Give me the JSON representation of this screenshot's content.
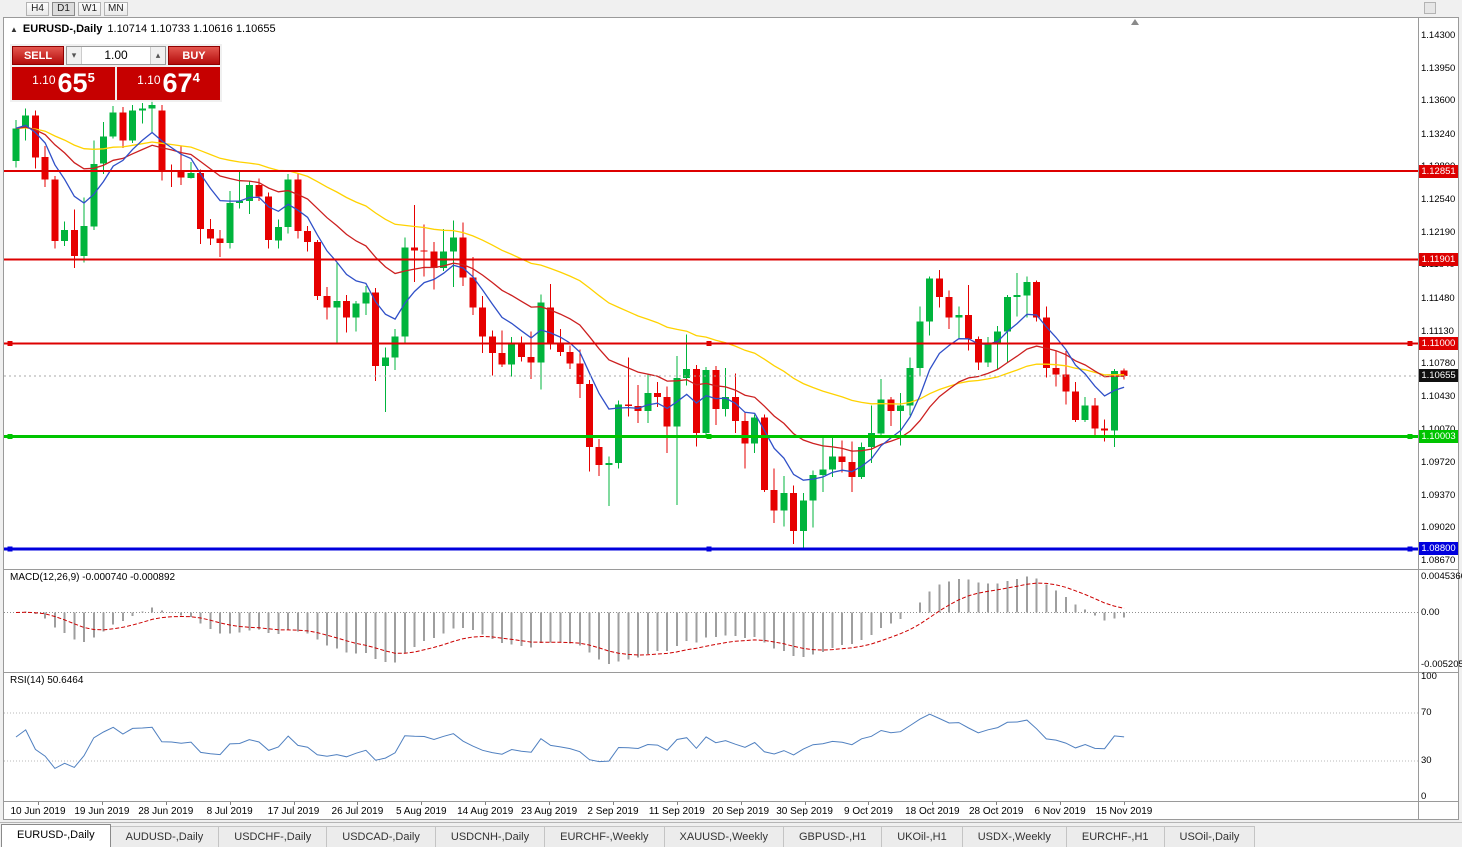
{
  "toolbar": {
    "timeframes": [
      "H4",
      "D1",
      "W1",
      "MN"
    ],
    "active_timeframe": "D1"
  },
  "icons": {
    "panel_toggle": "▲",
    "volume_step_down": "▾",
    "volume_step_up": "▴"
  },
  "chart_header": {
    "symbol_title": "EURUSD-,Daily",
    "ohlc": "1.10714 1.10733 1.10616 1.10655"
  },
  "trade_panel": {
    "sell_label": "SELL",
    "buy_label": "BUY",
    "volume": "1.00",
    "sell_price": {
      "prefix": "1.10",
      "big": "65",
      "sup": "5"
    },
    "buy_price": {
      "prefix": "1.10",
      "big": "67",
      "sup": "4"
    }
  },
  "price_axis_labels": [
    "1.14300",
    "1.13950",
    "1.13600",
    "1.13240",
    "1.12890",
    "1.12540",
    "1.12190",
    "1.11840",
    "1.11480",
    "1.11130",
    "1.10780",
    "1.10430",
    "1.10070",
    "1.09720",
    "1.09370",
    "1.09020",
    "1.08670"
  ],
  "current_price": "1.10655",
  "hlines": [
    {
      "value": 1.12851,
      "label": "1.12851",
      "color": "#dd0000",
      "width": 2,
      "handles": false
    },
    {
      "value": 1.11901,
      "label": "1.11901",
      "color": "#dd0000",
      "width": 2,
      "handles": false
    },
    {
      "value": 1.11,
      "label": "1.11000",
      "color": "#dd0000",
      "width": 2,
      "handles": true
    },
    {
      "value": 1.10003,
      "label": "1.10003",
      "color": "#00c400",
      "width": 3,
      "handles": true
    },
    {
      "value": 1.088,
      "label": "1.08800",
      "color": "#0000dd",
      "width": 3,
      "handles": true
    }
  ],
  "time_axis": [
    "10 Jun 2019",
    "19 Jun 2019",
    "28 Jun 2019",
    "8 Jul 2019",
    "17 Jul 2019",
    "26 Jul 2019",
    "5 Aug 2019",
    "14 Aug 2019",
    "23 Aug 2019",
    "2 Sep 2019",
    "11 Sep 2019",
    "20 Sep 2019",
    "30 Sep 2019",
    "9 Oct 2019",
    "18 Oct 2019",
    "28 Oct 2019",
    "6 Nov 2019",
    "15 Nov 2019"
  ],
  "indicators": {
    "macd": {
      "label": "MACD(12,26,9) -0.000740 -0.000892",
      "axis_top": "0.0045366",
      "axis_zero": "0.00",
      "axis_bottom": "-0.0052051"
    },
    "rsi": {
      "label": "RSI(14) 50.6464",
      "axis": [
        "100",
        "70",
        "30",
        "0"
      ],
      "levels": [
        70,
        30
      ]
    }
  },
  "tabs": [
    {
      "label": "EURUSD-,Daily",
      "active": true
    },
    {
      "label": "AUDUSD-,Daily",
      "active": false
    },
    {
      "label": "USDCHF-,Daily",
      "active": false
    },
    {
      "label": "USDCAD-,Daily",
      "active": false
    },
    {
      "label": "USDCNH-,Daily",
      "active": false
    },
    {
      "label": "EURCHF-,Weekly",
      "active": false
    },
    {
      "label": "XAUUSD-,Weekly",
      "active": false
    },
    {
      "label": "GBPUSD-,H1",
      "active": false
    },
    {
      "label": "UKOil-,H1",
      "active": false
    },
    {
      "label": "USDX-,Weekly",
      "active": false
    },
    {
      "label": "EURCHF-,H1",
      "active": false
    },
    {
      "label": "USOil-,Daily",
      "active": false
    }
  ],
  "colors": {
    "up_candle": "#00b43c",
    "down_candle": "#e60000",
    "ma_fast": "#3050c8",
    "ma_mid": "#cc2020",
    "ma_slow": "#ffd200",
    "macd_hist": "#9e9e9e",
    "macd_signal": "#cc0000",
    "rsi_line": "#5080c0"
  },
  "chart_data": {
    "type": "candlestick",
    "symbol": "EURUSD",
    "timeframe": "Daily",
    "date_range": [
      "10 Jun 2019",
      "15 Nov 2019"
    ],
    "price_range": [
      1.0867,
      1.143
    ],
    "ohlc_current": {
      "open": 1.10714,
      "high": 1.10733,
      "low": 1.10616,
      "close": 1.10655
    },
    "h_lines": [
      1.12851,
      1.11901,
      1.11,
      1.10003,
      1.088
    ],
    "moving_averages": [
      {
        "type": "ema",
        "period": 8,
        "color": "#3050c8"
      },
      {
        "type": "ema",
        "period": 20,
        "color": "#cc2020"
      },
      {
        "type": "ema",
        "period": 45,
        "color": "#ffd200"
      }
    ],
    "candles": [
      [
        1.1296,
        1.134,
        1.1289,
        1.1331
      ],
      [
        1.1331,
        1.1352,
        1.1318,
        1.1345
      ],
      [
        1.1345,
        1.135,
        1.1288,
        1.13
      ],
      [
        1.13,
        1.1312,
        1.1268,
        1.1276
      ],
      [
        1.1276,
        1.128,
        1.1202,
        1.121
      ],
      [
        1.121,
        1.1231,
        1.1205,
        1.1222
      ],
      [
        1.1222,
        1.1244,
        1.1181,
        1.1194
      ],
      [
        1.1194,
        1.1257,
        1.1187,
        1.1226
      ],
      [
        1.1226,
        1.1318,
        1.1222,
        1.1293
      ],
      [
        1.1293,
        1.1338,
        1.1282,
        1.1322
      ],
      [
        1.1322,
        1.1355,
        1.132,
        1.1348
      ],
      [
        1.1348,
        1.1354,
        1.131,
        1.1318
      ],
      [
        1.1318,
        1.1356,
        1.1315,
        1.135
      ],
      [
        1.135,
        1.1358,
        1.1336,
        1.1352
      ],
      [
        1.1352,
        1.1364,
        1.1326,
        1.1356
      ],
      [
        1.135,
        1.1356,
        1.1275,
        1.1286
      ],
      [
        1.1286,
        1.1292,
        1.1268,
        1.1285
      ],
      [
        1.1285,
        1.1312,
        1.127,
        1.1278
      ],
      [
        1.1278,
        1.1295,
        1.1277,
        1.1283
      ],
      [
        1.1283,
        1.1287,
        1.1207,
        1.1223
      ],
      [
        1.1223,
        1.1234,
        1.1206,
        1.1213
      ],
      [
        1.1213,
        1.1222,
        1.1193,
        1.1208
      ],
      [
        1.1208,
        1.1264,
        1.1202,
        1.1251
      ],
      [
        1.1251,
        1.1286,
        1.1245,
        1.1253
      ],
      [
        1.1253,
        1.1275,
        1.1239,
        1.127
      ],
      [
        1.127,
        1.1277,
        1.1253,
        1.1258
      ],
      [
        1.1258,
        1.1262,
        1.1202,
        1.1211
      ],
      [
        1.1211,
        1.1233,
        1.1202,
        1.1225
      ],
      [
        1.1225,
        1.1282,
        1.1218,
        1.1276
      ],
      [
        1.1276,
        1.1283,
        1.1213,
        1.1221
      ],
      [
        1.1221,
        1.1226,
        1.1199,
        1.1209
      ],
      [
        1.1209,
        1.1211,
        1.1147,
        1.1151
      ],
      [
        1.1151,
        1.1161,
        1.1126,
        1.1139
      ],
      [
        1.1139,
        1.1187,
        1.1101,
        1.1146
      ],
      [
        1.1146,
        1.1152,
        1.1112,
        1.1128
      ],
      [
        1.1128,
        1.1146,
        1.1113,
        1.1143
      ],
      [
        1.1143,
        1.1162,
        1.1131,
        1.1155
      ],
      [
        1.1155,
        1.116,
        1.106,
        1.1076
      ],
      [
        1.1076,
        1.1096,
        1.1027,
        1.1085
      ],
      [
        1.1085,
        1.1116,
        1.1072,
        1.1108
      ],
      [
        1.1108,
        1.1214,
        1.1101,
        1.1203
      ],
      [
        1.1203,
        1.1249,
        1.1166,
        1.12
      ],
      [
        1.12,
        1.1228,
        1.1172,
        1.1199
      ],
      [
        1.1199,
        1.1209,
        1.1158,
        1.1181
      ],
      [
        1.1181,
        1.1223,
        1.1178,
        1.1199
      ],
      [
        1.1199,
        1.1232,
        1.1161,
        1.1214
      ],
      [
        1.1214,
        1.123,
        1.1162,
        1.1171
      ],
      [
        1.1171,
        1.1193,
        1.1131,
        1.1139
      ],
      [
        1.1139,
        1.1151,
        1.109,
        1.1108
      ],
      [
        1.1108,
        1.1114,
        1.1066,
        1.109
      ],
      [
        1.109,
        1.1114,
        1.1075,
        1.1078
      ],
      [
        1.1078,
        1.1107,
        1.1065,
        1.1099
      ],
      [
        1.1099,
        1.1108,
        1.1081,
        1.1086
      ],
      [
        1.1086,
        1.1113,
        1.1062,
        1.108
      ],
      [
        1.108,
        1.1153,
        1.1051,
        1.1144
      ],
      [
        1.1139,
        1.1164,
        1.1094,
        1.1101
      ],
      [
        1.1101,
        1.1116,
        1.1087,
        1.1091
      ],
      [
        1.1091,
        1.1098,
        1.1073,
        1.1079
      ],
      [
        1.1079,
        1.1094,
        1.1042,
        1.1057
      ],
      [
        1.1057,
        1.1061,
        1.0963,
        1.0989
      ],
      [
        1.0989,
        1.0998,
        1.0958,
        1.097
      ],
      [
        1.097,
        1.0979,
        1.0926,
        1.0972
      ],
      [
        1.0972,
        1.1039,
        1.0966,
        1.1035
      ],
      [
        1.1035,
        1.1085,
        1.1022,
        1.1033
      ],
      [
        1.1033,
        1.1056,
        1.1015,
        1.1028
      ],
      [
        1.1028,
        1.1067,
        1.1015,
        1.1047
      ],
      [
        1.1047,
        1.1059,
        1.1032,
        1.1043
      ],
      [
        1.1043,
        1.1054,
        1.0983,
        1.1011
      ],
      [
        1.1011,
        1.1087,
        1.0927,
        1.1063
      ],
      [
        1.1063,
        1.111,
        1.1055,
        1.1073
      ],
      [
        1.1073,
        1.1077,
        1.099,
        1.1004
      ],
      [
        1.1004,
        1.1075,
        1.0999,
        1.1072
      ],
      [
        1.1072,
        1.1076,
        1.1013,
        1.103
      ],
      [
        1.103,
        1.1074,
        1.1022,
        1.1043
      ],
      [
        1.1043,
        1.1068,
        1.1004,
        1.1017
      ],
      [
        1.1017,
        1.1026,
        1.0966,
        1.0993
      ],
      [
        1.0993,
        1.1024,
        1.0983,
        1.1021
      ],
      [
        1.1021,
        1.1024,
        1.0941,
        1.0943
      ],
      [
        1.0943,
        1.0966,
        1.0908,
        1.0921
      ],
      [
        1.0921,
        1.0958,
        1.0904,
        1.094
      ],
      [
        1.094,
        1.0948,
        1.0885,
        1.0899
      ],
      [
        1.0899,
        1.094,
        1.0879,
        1.0932
      ],
      [
        1.0932,
        1.0964,
        1.0903,
        1.0959
      ],
      [
        1.0959,
        1.0999,
        1.0941,
        1.0965
      ],
      [
        1.0965,
        1.0999,
        1.0957,
        1.0979
      ],
      [
        1.0979,
        1.0996,
        1.0962,
        1.0973
      ],
      [
        1.0973,
        1.0995,
        1.0941,
        1.0957
      ],
      [
        1.0957,
        1.0994,
        1.0955,
        1.0989
      ],
      [
        1.0989,
        1.1034,
        1.0972,
        1.1004
      ],
      [
        1.1004,
        1.1062,
        1.1002,
        1.104
      ],
      [
        1.104,
        1.1043,
        1.1012,
        1.1028
      ],
      [
        1.1028,
        1.1047,
        1.0991,
        1.1034
      ],
      [
        1.1034,
        1.1085,
        1.1023,
        1.1074
      ],
      [
        1.1074,
        1.114,
        1.1065,
        1.1124
      ],
      [
        1.1124,
        1.1172,
        1.1109,
        1.117
      ],
      [
        1.117,
        1.1179,
        1.1139,
        1.115
      ],
      [
        1.115,
        1.1157,
        1.1116,
        1.1128
      ],
      [
        1.1128,
        1.114,
        1.1106,
        1.1131
      ],
      [
        1.1131,
        1.1163,
        1.1093,
        1.1105
      ],
      [
        1.1105,
        1.1108,
        1.1072,
        1.108
      ],
      [
        1.108,
        1.1107,
        1.1075,
        1.1099
      ],
      [
        1.1099,
        1.1119,
        1.1073,
        1.1113
      ],
      [
        1.1113,
        1.1152,
        1.108,
        1.115
      ],
      [
        1.115,
        1.1176,
        1.1129,
        1.1152
      ],
      [
        1.1152,
        1.1172,
        1.1128,
        1.1166
      ],
      [
        1.1166,
        1.1168,
        1.1124,
        1.1128
      ],
      [
        1.1128,
        1.114,
        1.1064,
        1.1074
      ],
      [
        1.1074,
        1.1093,
        1.1054,
        1.1067
      ],
      [
        1.1067,
        1.1092,
        1.1035,
        1.1049
      ],
      [
        1.1049,
        1.1059,
        1.1016,
        1.1018
      ],
      [
        1.1018,
        1.1043,
        1.1016,
        1.1034
      ],
      [
        1.1034,
        1.1042,
        1.1002,
        1.1009
      ],
      [
        1.1009,
        1.1019,
        1.0995,
        1.1007
      ],
      [
        1.1007,
        1.1073,
        1.0989,
        1.1071
      ],
      [
        1.10714,
        1.10733,
        1.10616,
        1.10655
      ]
    ]
  }
}
